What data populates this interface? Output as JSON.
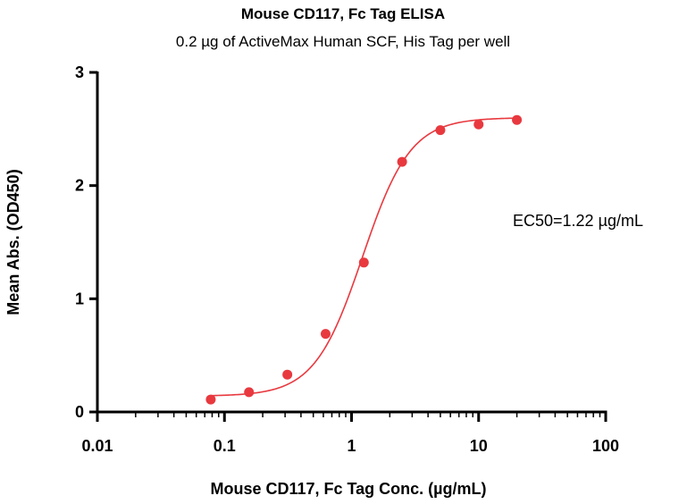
{
  "chart_data": {
    "type": "scatter",
    "title": "Mouse CD117, Fc Tag ELISA",
    "subtitle": "0.2 µg of ActiveMax Human SCF, His Tag per well",
    "xlabel": "Mouse CD117, Fc Tag Conc. (µg/mL)",
    "ylabel": "Mean Abs. (OD450)",
    "xscale": "log",
    "xlim": [
      0.01,
      100
    ],
    "ylim": [
      0,
      3
    ],
    "xticks": [
      0.01,
      0.1,
      1,
      10,
      100
    ],
    "xtick_labels": [
      "0.01",
      "0.1",
      "1",
      "10",
      "100"
    ],
    "yticks": [
      0,
      1,
      2,
      3
    ],
    "ytick_labels": [
      "0",
      "1",
      "2",
      "3"
    ],
    "grid": false,
    "series": [
      {
        "name": "Mouse CD117, Fc Tag",
        "color": "#e8393f",
        "x": [
          0.078,
          0.156,
          0.3125,
          0.625,
          1.25,
          2.5,
          5,
          10,
          20
        ],
        "y": [
          0.11,
          0.175,
          0.33,
          0.69,
          1.32,
          2.21,
          2.49,
          2.54,
          2.58
        ]
      }
    ],
    "fit": {
      "model": "4PL",
      "bottom": 0.14,
      "top": 2.6,
      "ec50": 1.22,
      "hill": 2.3,
      "color": "#e8393f"
    },
    "annotation": "EC50=1.22 µg/mL"
  }
}
